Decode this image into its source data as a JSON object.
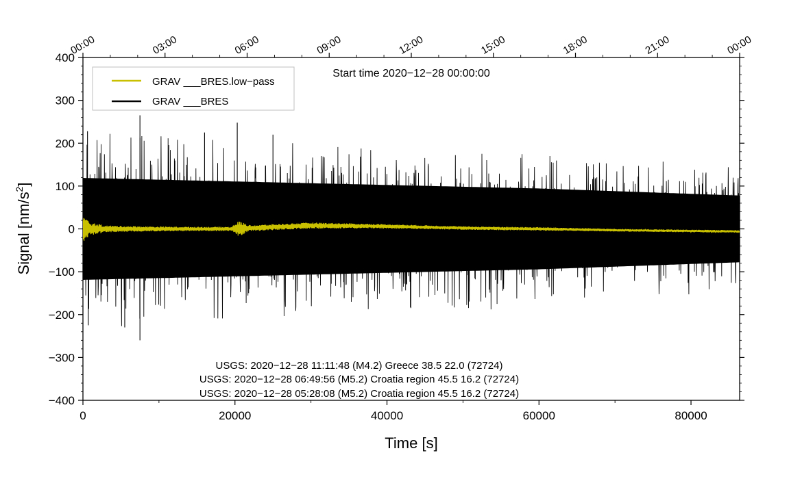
{
  "chart_data": {
    "type": "line",
    "title": "",
    "subtitle": "Start time 2020−12−28 00:00:00",
    "xlabel": "Time [s]",
    "ylabel_main": "Signal [nm/s",
    "ylabel_sup": "2",
    "ylabel_close": "]",
    "xlim": [
      0,
      86400
    ],
    "ylim": [
      -400,
      400
    ],
    "x_ticks": [
      {
        "value": 0,
        "label": "0"
      },
      {
        "value": 20000,
        "label": "20000"
      },
      {
        "value": 40000,
        "label": "40000"
      },
      {
        "value": 60000,
        "label": "60000"
      },
      {
        "value": 80000,
        "label": "80000"
      }
    ],
    "y_ticks": [
      {
        "value": 400,
        "label": "400"
      },
      {
        "value": 300,
        "label": "300"
      },
      {
        "value": 200,
        "label": "200"
      },
      {
        "value": 100,
        "label": "100"
      },
      {
        "value": 0,
        "label": "0"
      },
      {
        "value": -100,
        "label": "−100"
      },
      {
        "value": -200,
        "label": "−200"
      },
      {
        "value": -300,
        "label": "−300"
      },
      {
        "value": -400,
        "label": "−400"
      }
    ],
    "top_axis_ticks": [
      {
        "value": 0,
        "label": "00:00"
      },
      {
        "value": 10800,
        "label": "03:00"
      },
      {
        "value": 21600,
        "label": "06:00"
      },
      {
        "value": 32400,
        "label": "09:00"
      },
      {
        "value": 43200,
        "label": "12:00"
      },
      {
        "value": 54000,
        "label": "15:00"
      },
      {
        "value": 64800,
        "label": "18:00"
      },
      {
        "value": 75600,
        "label": "21:00"
      },
      {
        "value": 86400,
        "label": "00:00"
      }
    ],
    "legend_position": "top-left",
    "series": [
      {
        "name": "GRAV ___BRES.low−pass",
        "color": "#c8c000",
        "envelope": [
          [
            0,
            30
          ],
          [
            1000,
            15
          ],
          [
            3000,
            8
          ],
          [
            8000,
            6
          ],
          [
            14000,
            5
          ],
          [
            19500,
            5
          ],
          [
            20500,
            18
          ],
          [
            22000,
            7
          ],
          [
            30000,
            7
          ],
          [
            40000,
            5
          ],
          [
            50000,
            4
          ],
          [
            60000,
            4
          ],
          [
            70000,
            3
          ],
          [
            86400,
            3
          ]
        ],
        "trend": [
          [
            0,
            0
          ],
          [
            20000,
            0
          ],
          [
            30000,
            8
          ],
          [
            40000,
            6
          ],
          [
            50000,
            2
          ],
          [
            60000,
            0
          ],
          [
            70000,
            -3
          ],
          [
            86400,
            -6
          ]
        ]
      },
      {
        "name": "GRAV ___BRES",
        "color": "#000000",
        "envelope": [
          [
            0,
            145
          ],
          [
            20000,
            135
          ],
          [
            40000,
            125
          ],
          [
            60000,
            115
          ],
          [
            86400,
            95
          ]
        ],
        "peaks": [
          [
            7500,
            265
          ],
          [
            7500,
            -260
          ],
          [
            20300,
            248
          ],
          [
            16000,
            225
          ],
          [
            600,
            228
          ],
          [
            700,
            -225
          ],
          [
            5500,
            -230
          ],
          [
            25000,
            220
          ]
        ]
      }
    ],
    "annotations": [
      "USGS: 2020−12−28 11:11:48 (M4.2) Greece 38.5 22.0 (72724)",
      "USGS: 2020−12−28 06:49:56 (M5.2) Croatia region 45.5 16.2 (72724)",
      "USGS: 2020−12−28 05:28:08 (M5.2) Croatia region 45.5 16.2 (72724)"
    ],
    "grid": false
  }
}
